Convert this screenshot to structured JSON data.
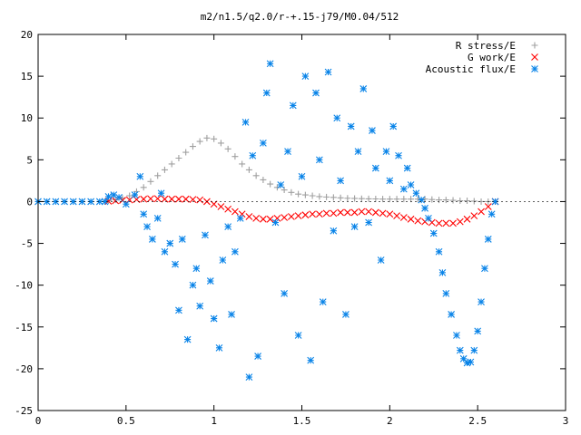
{
  "chart_data": {
    "type": "scatter",
    "title": "m2/n1.5/q2.0/r-+.15-j79/M0.04/512",
    "xlabel": "",
    "ylabel": "",
    "xlim": [
      0,
      3
    ],
    "ylim": [
      -25,
      20
    ],
    "xticks": [
      0,
      0.5,
      1,
      1.5,
      2,
      2.5,
      3
    ],
    "yticks": [
      -25,
      -20,
      -15,
      -10,
      -5,
      0,
      5,
      10,
      15,
      20
    ],
    "grid": false,
    "legend_position": "top-right",
    "series": [
      {
        "name": "R stress/E",
        "marker": "plus",
        "color": "#a0a0a0",
        "points": [
          [
            0.4,
            0.1
          ],
          [
            0.44,
            0.2
          ],
          [
            0.48,
            0.4
          ],
          [
            0.52,
            0.7
          ],
          [
            0.56,
            1.2
          ],
          [
            0.6,
            1.7
          ],
          [
            0.64,
            2.4
          ],
          [
            0.68,
            3.1
          ],
          [
            0.72,
            3.8
          ],
          [
            0.76,
            4.5
          ],
          [
            0.8,
            5.2
          ],
          [
            0.84,
            5.9
          ],
          [
            0.88,
            6.6
          ],
          [
            0.92,
            7.2
          ],
          [
            0.96,
            7.6
          ],
          [
            1.0,
            7.5
          ],
          [
            1.04,
            7.0
          ],
          [
            1.08,
            6.3
          ],
          [
            1.12,
            5.4
          ],
          [
            1.16,
            4.5
          ],
          [
            1.2,
            3.8
          ],
          [
            1.24,
            3.1
          ],
          [
            1.28,
            2.6
          ],
          [
            1.32,
            2.1
          ],
          [
            1.36,
            1.7
          ],
          [
            1.4,
            1.4
          ],
          [
            1.44,
            1.1
          ],
          [
            1.48,
            0.9
          ],
          [
            1.52,
            0.8
          ],
          [
            1.56,
            0.7
          ],
          [
            1.6,
            0.6
          ],
          [
            1.64,
            0.55
          ],
          [
            1.68,
            0.5
          ],
          [
            1.72,
            0.45
          ],
          [
            1.76,
            0.4
          ],
          [
            1.8,
            0.38
          ],
          [
            1.84,
            0.35
          ],
          [
            1.88,
            0.33
          ],
          [
            1.92,
            0.32
          ],
          [
            1.96,
            0.3
          ],
          [
            2.0,
            0.3
          ],
          [
            2.04,
            0.3
          ],
          [
            2.08,
            0.3
          ],
          [
            2.12,
            0.3
          ],
          [
            2.16,
            0.3
          ],
          [
            2.2,
            0.3
          ],
          [
            2.24,
            0.25
          ],
          [
            2.28,
            0.2
          ],
          [
            2.32,
            0.2
          ],
          [
            2.36,
            0.15
          ],
          [
            2.4,
            0.1
          ],
          [
            2.44,
            0.1
          ],
          [
            2.48,
            0.05
          ],
          [
            2.52,
            0.0
          ],
          [
            2.56,
            0.0
          ],
          [
            2.6,
            0.0
          ]
        ]
      },
      {
        "name": "G work/E",
        "marker": "cross",
        "color": "#ff0000",
        "points": [
          [
            0.4,
            0.05
          ],
          [
            0.44,
            0.1
          ],
          [
            0.48,
            0.15
          ],
          [
            0.52,
            0.2
          ],
          [
            0.56,
            0.25
          ],
          [
            0.6,
            0.3
          ],
          [
            0.64,
            0.35
          ],
          [
            0.68,
            0.35
          ],
          [
            0.72,
            0.3
          ],
          [
            0.76,
            0.3
          ],
          [
            0.8,
            0.3
          ],
          [
            0.84,
            0.3
          ],
          [
            0.88,
            0.25
          ],
          [
            0.92,
            0.2
          ],
          [
            0.96,
            0.0
          ],
          [
            1.0,
            -0.3
          ],
          [
            1.04,
            -0.6
          ],
          [
            1.08,
            -0.9
          ],
          [
            1.12,
            -1.2
          ],
          [
            1.16,
            -1.5
          ],
          [
            1.2,
            -1.8
          ],
          [
            1.24,
            -2.0
          ],
          [
            1.28,
            -2.1
          ],
          [
            1.32,
            -2.1
          ],
          [
            1.36,
            -2.0
          ],
          [
            1.4,
            -1.9
          ],
          [
            1.44,
            -1.8
          ],
          [
            1.48,
            -1.7
          ],
          [
            1.52,
            -1.6
          ],
          [
            1.56,
            -1.5
          ],
          [
            1.6,
            -1.5
          ],
          [
            1.64,
            -1.4
          ],
          [
            1.68,
            -1.4
          ],
          [
            1.72,
            -1.3
          ],
          [
            1.76,
            -1.3
          ],
          [
            1.8,
            -1.3
          ],
          [
            1.84,
            -1.2
          ],
          [
            1.88,
            -1.2
          ],
          [
            1.92,
            -1.3
          ],
          [
            1.96,
            -1.4
          ],
          [
            2.0,
            -1.5
          ],
          [
            2.04,
            -1.7
          ],
          [
            2.08,
            -1.9
          ],
          [
            2.12,
            -2.1
          ],
          [
            2.16,
            -2.3
          ],
          [
            2.2,
            -2.4
          ],
          [
            2.24,
            -2.5
          ],
          [
            2.28,
            -2.6
          ],
          [
            2.32,
            -2.6
          ],
          [
            2.36,
            -2.6
          ],
          [
            2.4,
            -2.4
          ],
          [
            2.44,
            -2.1
          ],
          [
            2.48,
            -1.7
          ],
          [
            2.52,
            -1.2
          ],
          [
            2.56,
            -0.6
          ],
          [
            2.6,
            0.0
          ]
        ]
      },
      {
        "name": "Acoustic flux/E",
        "marker": "star",
        "color": "#0a84e8",
        "points": [
          [
            0.0,
            0.0
          ],
          [
            0.05,
            0.0
          ],
          [
            0.1,
            0.0
          ],
          [
            0.15,
            0.0
          ],
          [
            0.2,
            0.0
          ],
          [
            0.25,
            0.0
          ],
          [
            0.3,
            0.0
          ],
          [
            0.35,
            0.0
          ],
          [
            0.38,
            0.0
          ],
          [
            0.4,
            0.6
          ],
          [
            0.43,
            0.8
          ],
          [
            0.46,
            0.5
          ],
          [
            0.5,
            -0.3
          ],
          [
            0.55,
            0.8
          ],
          [
            0.58,
            3.0
          ],
          [
            0.6,
            -1.5
          ],
          [
            0.62,
            -3.0
          ],
          [
            0.65,
            -4.5
          ],
          [
            0.68,
            -2.0
          ],
          [
            0.7,
            1.0
          ],
          [
            0.72,
            -6.0
          ],
          [
            0.75,
            -5.0
          ],
          [
            0.78,
            -7.5
          ],
          [
            0.8,
            -13.0
          ],
          [
            0.82,
            -4.5
          ],
          [
            0.85,
            -16.5
          ],
          [
            0.88,
            -10.0
          ],
          [
            0.9,
            -8.0
          ],
          [
            0.92,
            -12.5
          ],
          [
            0.95,
            -4.0
          ],
          [
            0.98,
            -9.5
          ],
          [
            1.0,
            -14.0
          ],
          [
            1.03,
            -17.5
          ],
          [
            1.05,
            -7.0
          ],
          [
            1.08,
            -3.0
          ],
          [
            1.1,
            -13.5
          ],
          [
            1.12,
            -6.0
          ],
          [
            1.15,
            -2.0
          ],
          [
            1.18,
            9.5
          ],
          [
            1.2,
            -21.0
          ],
          [
            1.22,
            5.5
          ],
          [
            1.25,
            -18.5
          ],
          [
            1.28,
            7.0
          ],
          [
            1.3,
            13.0
          ],
          [
            1.32,
            16.5
          ],
          [
            1.35,
            -2.5
          ],
          [
            1.38,
            2.0
          ],
          [
            1.4,
            -11.0
          ],
          [
            1.42,
            6.0
          ],
          [
            1.45,
            11.5
          ],
          [
            1.48,
            -16.0
          ],
          [
            1.5,
            3.0
          ],
          [
            1.52,
            15.0
          ],
          [
            1.55,
            -19.0
          ],
          [
            1.58,
            13.0
          ],
          [
            1.6,
            5.0
          ],
          [
            1.62,
            -12.0
          ],
          [
            1.65,
            15.5
          ],
          [
            1.68,
            -3.5
          ],
          [
            1.7,
            10.0
          ],
          [
            1.72,
            2.5
          ],
          [
            1.75,
            -13.5
          ],
          [
            1.78,
            9.0
          ],
          [
            1.8,
            -3.0
          ],
          [
            1.82,
            6.0
          ],
          [
            1.85,
            13.5
          ],
          [
            1.88,
            -2.5
          ],
          [
            1.9,
            8.5
          ],
          [
            1.92,
            4.0
          ],
          [
            1.95,
            -7.0
          ],
          [
            1.98,
            6.0
          ],
          [
            2.0,
            2.5
          ],
          [
            2.02,
            9.0
          ],
          [
            2.05,
            5.5
          ],
          [
            2.08,
            1.5
          ],
          [
            2.1,
            4.0
          ],
          [
            2.12,
            2.0
          ],
          [
            2.15,
            1.0
          ],
          [
            2.18,
            0.2
          ],
          [
            2.2,
            -0.8
          ],
          [
            2.22,
            -2.0
          ],
          [
            2.25,
            -3.8
          ],
          [
            2.28,
            -6.0
          ],
          [
            2.3,
            -8.5
          ],
          [
            2.32,
            -11.0
          ],
          [
            2.35,
            -13.5
          ],
          [
            2.38,
            -16.0
          ],
          [
            2.4,
            -17.8
          ],
          [
            2.42,
            -18.8
          ],
          [
            2.44,
            -19.3
          ],
          [
            2.46,
            -19.2
          ],
          [
            2.48,
            -17.8
          ],
          [
            2.5,
            -15.5
          ],
          [
            2.52,
            -12.0
          ],
          [
            2.54,
            -8.0
          ],
          [
            2.56,
            -4.5
          ],
          [
            2.58,
            -1.5
          ],
          [
            2.6,
            0.0
          ]
        ]
      }
    ]
  }
}
